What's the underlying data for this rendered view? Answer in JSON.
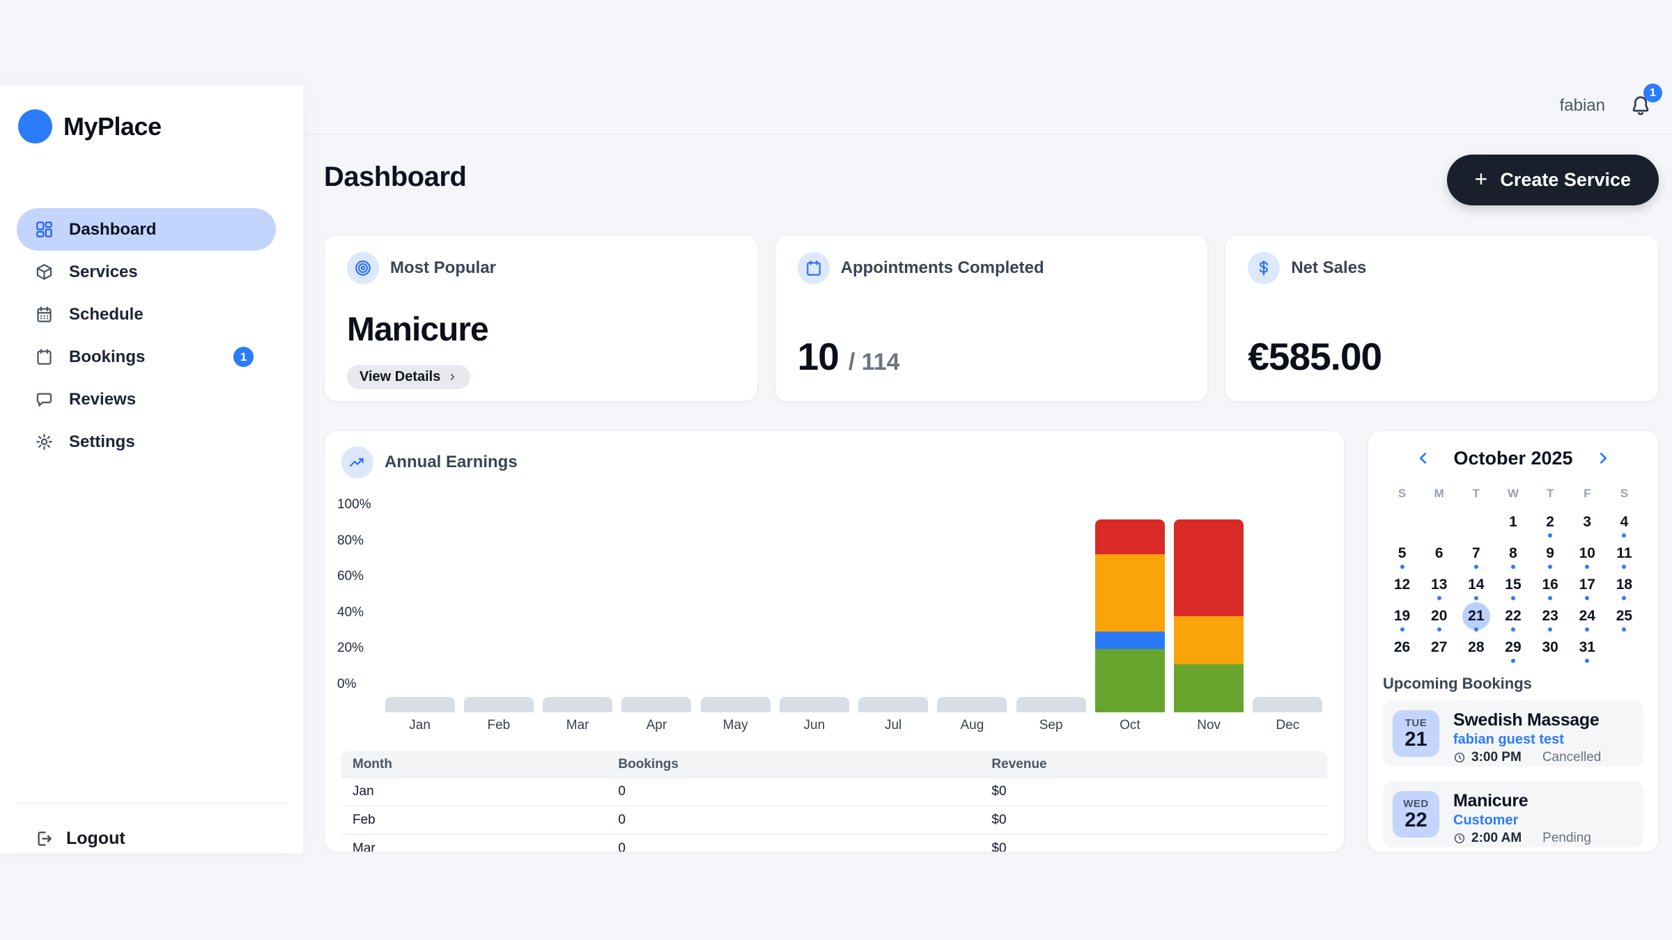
{
  "app": {
    "name": "MyPlace"
  },
  "header": {
    "username": "fabian",
    "notification_count": "1"
  },
  "sidebar": {
    "items": [
      {
        "label": "Dashboard",
        "icon": "grid-icon",
        "active": true
      },
      {
        "label": "Services",
        "icon": "box-icon"
      },
      {
        "label": "Schedule",
        "icon": "calendar-check-icon"
      },
      {
        "label": "Bookings",
        "icon": "calendar-icon",
        "badge": "1"
      },
      {
        "label": "Reviews",
        "icon": "chat-icon"
      },
      {
        "label": "Settings",
        "icon": "gear-icon"
      }
    ],
    "logout_label": "Logout"
  },
  "page": {
    "title": "Dashboard",
    "create_button_label": "Create Service"
  },
  "stats": [
    {
      "icon": "target-icon",
      "label": "Most Popular",
      "value": "Manicure",
      "action_label": "View Details"
    },
    {
      "icon": "calendar-icon",
      "label": "Appointments Completed",
      "value": "10",
      "suffix": "/ 114"
    },
    {
      "icon": "dollar-icon",
      "label": "Net Sales",
      "value": "€585.00"
    }
  ],
  "chart_data": {
    "type": "bar",
    "stacked": true,
    "title": "Annual Earnings",
    "categories": [
      "Jan",
      "Feb",
      "Mar",
      "Apr",
      "May",
      "Jun",
      "Jul",
      "Aug",
      "Sep",
      "Oct",
      "Nov",
      "Dec"
    ],
    "y_ticks": [
      "100%",
      "80%",
      "60%",
      "40%",
      "20%",
      "0%"
    ],
    "ylim": [
      0,
      100
    ],
    "unit": "percent",
    "grid": false,
    "legend": "none",
    "series": [
      {
        "name": "green-segment",
        "color": "#68a52f",
        "values": [
          0,
          0,
          0,
          0,
          0,
          0,
          0,
          0,
          0,
          33,
          25,
          0
        ]
      },
      {
        "name": "blue-segment",
        "color": "#2b79f7",
        "values": [
          0,
          0,
          0,
          0,
          0,
          0,
          0,
          0,
          0,
          9,
          0,
          0
        ]
      },
      {
        "name": "orange-segment",
        "color": "#f9a40a",
        "values": [
          0,
          0,
          0,
          0,
          0,
          0,
          0,
          0,
          0,
          40,
          25,
          0
        ]
      },
      {
        "name": "red-segment",
        "color": "#da2a27",
        "values": [
          0,
          0,
          0,
          0,
          0,
          0,
          0,
          0,
          0,
          18,
          50,
          0
        ]
      }
    ],
    "empty_month_color": "#d8dde6"
  },
  "earnings_table": {
    "headers": [
      "Month",
      "Bookings",
      "Revenue"
    ],
    "rows": [
      [
        "Jan",
        "0",
        "$0"
      ],
      [
        "Feb",
        "0",
        "$0"
      ],
      [
        "Mar",
        "0",
        "$0"
      ]
    ]
  },
  "calendar": {
    "title": "October 2025",
    "weekdays": [
      "S",
      "M",
      "T",
      "W",
      "T",
      "F",
      "S"
    ],
    "leading_blanks": 3,
    "selected_day": 21,
    "days": [
      {
        "d": 1,
        "dot": false
      },
      {
        "d": 2,
        "dot": true
      },
      {
        "d": 3,
        "dot": false
      },
      {
        "d": 4,
        "dot": true
      },
      {
        "d": 5,
        "dot": true
      },
      {
        "d": 6,
        "dot": false
      },
      {
        "d": 7,
        "dot": true
      },
      {
        "d": 8,
        "dot": true
      },
      {
        "d": 9,
        "dot": true
      },
      {
        "d": 10,
        "dot": true
      },
      {
        "d": 11,
        "dot": true
      },
      {
        "d": 12,
        "dot": false
      },
      {
        "d": 13,
        "dot": true
      },
      {
        "d": 14,
        "dot": true
      },
      {
        "d": 15,
        "dot": true
      },
      {
        "d": 16,
        "dot": true
      },
      {
        "d": 17,
        "dot": true
      },
      {
        "d": 18,
        "dot": true
      },
      {
        "d": 19,
        "dot": true
      },
      {
        "d": 20,
        "dot": true
      },
      {
        "d": 21,
        "dot": true
      },
      {
        "d": 22,
        "dot": true
      },
      {
        "d": 23,
        "dot": true
      },
      {
        "d": 24,
        "dot": true
      },
      {
        "d": 25,
        "dot": true
      },
      {
        "d": 26,
        "dot": false
      },
      {
        "d": 27,
        "dot": false
      },
      {
        "d": 28,
        "dot": false
      },
      {
        "d": 29,
        "dot": true
      },
      {
        "d": 30,
        "dot": false
      },
      {
        "d": 31,
        "dot": true
      }
    ]
  },
  "bookings": {
    "heading": "Upcoming Bookings",
    "items": [
      {
        "day": "TUE",
        "date": "21",
        "title": "Swedish Massage",
        "customer": "fabian guest test",
        "time": "3:00 PM",
        "status": "Cancelled"
      },
      {
        "day": "WED",
        "date": "22",
        "title": "Manicure",
        "customer": "Customer",
        "time": "2:00 AM",
        "status": "Pending"
      }
    ]
  },
  "colors": {
    "accent_blue": "#2b7cf8",
    "active_pill": "#c3d4fd",
    "dark_button": "#191f2b",
    "page_bg": "#f4f6f9"
  }
}
